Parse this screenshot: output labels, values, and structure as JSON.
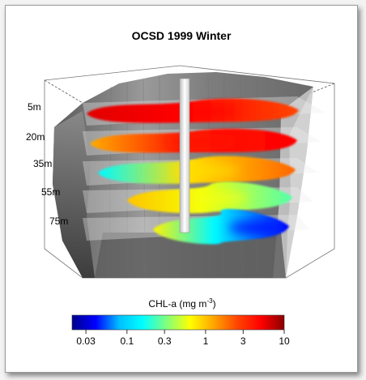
{
  "chart_data": {
    "type": "3d-surface-layers",
    "title": "OCSD 1999 Winter",
    "depth_labels": [
      "5m",
      "20m",
      "35m",
      "55m",
      "75m"
    ],
    "layers": [
      {
        "depth": "5m",
        "dominant_chl": 5.0,
        "west_chl": 6.0,
        "east_chl": 2.5
      },
      {
        "depth": "20m",
        "dominant_chl": 4.0,
        "west_chl": 1.2,
        "east_chl": 5.0
      },
      {
        "depth": "35m",
        "dominant_chl": 0.8,
        "west_chl": 0.15,
        "east_chl": 2.0
      },
      {
        "depth": "55m",
        "dominant_chl": 0.6,
        "west_chl": 1.0,
        "east_chl": 0.25
      },
      {
        "depth": "75m",
        "dominant_chl": 0.15,
        "west_chl": 0.7,
        "east_chl": 0.04
      }
    ],
    "colorbar": {
      "title_main": "CHL-a (mg m",
      "title_sup": "-3",
      "title_end": ")",
      "scale": "log",
      "range": [
        0.02,
        10
      ],
      "ticks": [
        0.03,
        0.1,
        0.3,
        1,
        3,
        10
      ],
      "tick_labels": [
        "0.03",
        "0.1",
        "0.3",
        "1",
        "3",
        "10"
      ],
      "colors": [
        "#00008b",
        "#0000ff",
        "#00bfff",
        "#00ffff",
        "#7fff7f",
        "#ffff00",
        "#ffa500",
        "#ff4500",
        "#ff0000",
        "#8b0000"
      ]
    },
    "colors": {
      "terrain_light": "#a6a6a6",
      "terrain_dark": "#4c4c4c",
      "outfall_pipe": "#ffffff"
    }
  }
}
